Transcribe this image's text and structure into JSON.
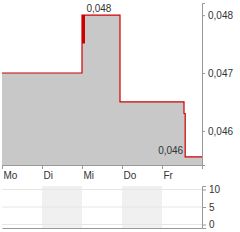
{
  "chart_data": [
    {
      "type": "line",
      "x": [
        0,
        2,
        2.03,
        2.06,
        2.95,
        4.55,
        4.58,
        5
      ],
      "values": [
        0.047,
        0.048,
        0.04752,
        0.048,
        0.0465,
        0.0463,
        0.04555,
        0.04555
      ],
      "color": "#cc0000",
      "line_style": "step",
      "xlim": [
        0,
        5
      ],
      "xticks": [
        {
          "value": 0,
          "label": "Mo"
        },
        {
          "value": 1,
          "label": "Di"
        },
        {
          "value": 2,
          "label": "Mi"
        },
        {
          "value": 3,
          "label": "Do"
        },
        {
          "value": 4,
          "label": "Fr"
        }
      ],
      "ylim": [
        0.04541,
        0.04821
      ],
      "yticks": [
        {
          "value": 0.046,
          "label": "0,046"
        },
        {
          "value": 0.047,
          "label": "0,047"
        },
        {
          "value": 0.048,
          "label": "0,048"
        }
      ],
      "annotations": [
        {
          "text": "0,048",
          "x": 2.06,
          "y": 0.048
        },
        {
          "text": "0,046",
          "x": 4.58,
          "y": 0.04555
        }
      ],
      "grid": false
    },
    {
      "type": "bar",
      "xlim": [
        0,
        5
      ],
      "xticks": [
        0,
        1,
        2,
        3,
        4
      ],
      "ylim": [
        -1,
        11
      ],
      "yticks": [
        0,
        5,
        10
      ],
      "tick_labels": "y",
      "grid": true
    }
  ]
}
